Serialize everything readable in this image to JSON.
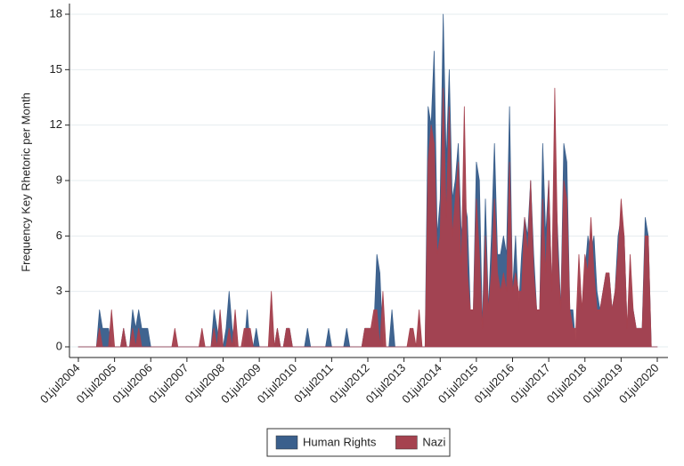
{
  "chart_data": {
    "type": "area",
    "y_label": "Frequency Key Rhetoric per Month",
    "x": [
      "2004-07-01",
      "2004-08-01",
      "2004-09-01",
      "2004-10-01",
      "2004-11-01",
      "2004-12-01",
      "2005-01-01",
      "2005-02-01",
      "2005-03-01",
      "2005-04-01",
      "2005-05-01",
      "2005-06-01",
      "2005-07-01",
      "2005-08-01",
      "2005-09-01",
      "2005-10-01",
      "2005-11-01",
      "2005-12-01",
      "2006-01-01",
      "2006-02-01",
      "2006-03-01",
      "2006-04-01",
      "2006-05-01",
      "2006-06-01",
      "2006-07-01",
      "2006-08-01",
      "2006-09-01",
      "2006-10-01",
      "2006-11-01",
      "2006-12-01",
      "2007-01-01",
      "2007-02-01",
      "2007-03-01",
      "2007-04-01",
      "2007-05-01",
      "2007-06-01",
      "2007-07-01",
      "2007-08-01",
      "2007-09-01",
      "2007-10-01",
      "2007-11-01",
      "2007-12-01",
      "2008-01-01",
      "2008-02-01",
      "2008-03-01",
      "2008-04-01",
      "2008-05-01",
      "2008-06-01",
      "2008-07-01",
      "2008-08-01",
      "2008-09-01",
      "2008-10-01",
      "2008-11-01",
      "2008-12-01",
      "2009-01-01",
      "2009-02-01",
      "2009-03-01",
      "2009-04-01",
      "2009-05-01",
      "2009-06-01",
      "2009-07-01",
      "2009-08-01",
      "2009-09-01",
      "2009-10-01",
      "2009-11-01",
      "2009-12-01",
      "2010-01-01",
      "2010-02-01",
      "2010-03-01",
      "2010-04-01",
      "2010-05-01",
      "2010-06-01",
      "2010-07-01",
      "2010-08-01",
      "2010-09-01",
      "2010-10-01",
      "2010-11-01",
      "2010-12-01",
      "2011-01-01",
      "2011-02-01",
      "2011-03-01",
      "2011-04-01",
      "2011-05-01",
      "2011-06-01",
      "2011-07-01",
      "2011-08-01",
      "2011-09-01",
      "2011-10-01",
      "2011-11-01",
      "2011-12-01",
      "2012-01-01",
      "2012-02-01",
      "2012-03-01",
      "2012-04-01",
      "2012-05-01",
      "2012-06-01",
      "2012-07-01",
      "2012-08-01",
      "2012-09-01",
      "2012-10-01",
      "2012-11-01",
      "2012-12-01",
      "2013-01-01",
      "2013-02-01",
      "2013-03-01",
      "2013-04-01",
      "2013-05-01",
      "2013-06-01",
      "2013-07-01",
      "2013-08-01",
      "2013-09-01",
      "2013-10-01",
      "2013-11-01",
      "2013-12-01",
      "2014-01-01",
      "2014-02-01",
      "2014-03-01",
      "2014-04-01",
      "2014-05-01",
      "2014-06-01",
      "2014-07-01",
      "2014-08-01",
      "2014-09-01",
      "2014-10-01",
      "2014-11-01",
      "2014-12-01",
      "2015-01-01",
      "2015-02-01",
      "2015-03-01",
      "2015-04-01",
      "2015-05-01",
      "2015-06-01",
      "2015-07-01",
      "2015-08-01",
      "2015-09-01",
      "2015-10-01",
      "2015-11-01",
      "2015-12-01",
      "2016-01-01",
      "2016-02-01",
      "2016-03-01",
      "2016-04-01",
      "2016-05-01",
      "2016-06-01",
      "2016-07-01",
      "2016-08-01",
      "2016-09-01",
      "2016-10-01",
      "2016-11-01",
      "2016-12-01",
      "2017-01-01",
      "2017-02-01",
      "2017-03-01",
      "2017-04-01",
      "2017-05-01",
      "2017-06-01",
      "2017-07-01",
      "2017-08-01",
      "2017-09-01",
      "2017-10-01",
      "2017-11-01",
      "2017-12-01",
      "2018-01-01",
      "2018-02-01",
      "2018-03-01",
      "2018-04-01",
      "2018-05-01",
      "2018-06-01",
      "2018-07-01",
      "2018-08-01",
      "2018-09-01",
      "2018-10-01",
      "2018-11-01",
      "2018-12-01",
      "2019-01-01",
      "2019-02-01",
      "2019-03-01",
      "2019-04-01",
      "2019-05-01",
      "2019-06-01",
      "2019-07-01",
      "2019-08-01",
      "2019-09-01",
      "2019-10-01",
      "2019-11-01",
      "2019-12-01",
      "2020-01-01",
      "2020-02-01",
      "2020-03-01",
      "2020-04-01",
      "2020-05-01",
      "2020-06-01",
      "2020-07-01"
    ],
    "series": [
      {
        "name": "Human Rights",
        "color": "#3a5f8c",
        "values": [
          0,
          0,
          0,
          0,
          0,
          0,
          0,
          2,
          1,
          1,
          1,
          0,
          0,
          0,
          0,
          1,
          0,
          0,
          2,
          1,
          2,
          1,
          1,
          1,
          0,
          0,
          0,
          0,
          0,
          0,
          0,
          0,
          0,
          0,
          0,
          0,
          0,
          0,
          0,
          0,
          0,
          0,
          0,
          0,
          0,
          2,
          1,
          0,
          0,
          1,
          3,
          1,
          0,
          0,
          0,
          0,
          2,
          0,
          0,
          1,
          0,
          0,
          0,
          0,
          0,
          0,
          1,
          0,
          0,
          1,
          1,
          0,
          0,
          0,
          0,
          0,
          1,
          0,
          0,
          0,
          0,
          0,
          0,
          1,
          0,
          0,
          0,
          0,
          0,
          1,
          0,
          0,
          0,
          0,
          0,
          1,
          1,
          1,
          1,
          5,
          4,
          0,
          0,
          0,
          2,
          0,
          0,
          0,
          0,
          0,
          0,
          0,
          0,
          0,
          0,
          0,
          13,
          12,
          16,
          6,
          8,
          18,
          10,
          15,
          8,
          9,
          11,
          6,
          8,
          7,
          2,
          2,
          10,
          9,
          1,
          8,
          2,
          6,
          11,
          5,
          5,
          6,
          5,
          13,
          3,
          6,
          2,
          5,
          7,
          6,
          9,
          5,
          2,
          2,
          11,
          6,
          9,
          3,
          10,
          6,
          2,
          11,
          10,
          2,
          2,
          0,
          3,
          2,
          4,
          6,
          5,
          6,
          3,
          2,
          3,
          4,
          4,
          2,
          3,
          6,
          7,
          6,
          1,
          3,
          2,
          1,
          1,
          1,
          7,
          6,
          0,
          0,
          0
        ]
      },
      {
        "name": "Nazi",
        "color": "#a5424f",
        "values": [
          0,
          0,
          0,
          0,
          0,
          0,
          0,
          1,
          0,
          0,
          0,
          2,
          0,
          0,
          0,
          1,
          0,
          0,
          1,
          0,
          1,
          0,
          0,
          0,
          0,
          0,
          0,
          0,
          0,
          0,
          0,
          0,
          1,
          0,
          0,
          0,
          0,
          0,
          0,
          0,
          0,
          1,
          0,
          0,
          0,
          1,
          0,
          2,
          0,
          0,
          1,
          0,
          2,
          0,
          0,
          1,
          1,
          1,
          0,
          0,
          0,
          0,
          0,
          0,
          3,
          0,
          1,
          0,
          0,
          1,
          1,
          0,
          0,
          0,
          0,
          0,
          0,
          0,
          0,
          0,
          0,
          0,
          0,
          0,
          0,
          0,
          0,
          0,
          0,
          0,
          0,
          0,
          0,
          0,
          0,
          1,
          1,
          1,
          2,
          2,
          0,
          3,
          0,
          0,
          0,
          0,
          0,
          0,
          0,
          0,
          1,
          1,
          0,
          2,
          0,
          0,
          10,
          12,
          11,
          5,
          6,
          14,
          7,
          13,
          6,
          8,
          10,
          4,
          13,
          4,
          2,
          2,
          8,
          5,
          1,
          6,
          2,
          4,
          8,
          4,
          3,
          4,
          3,
          10,
          3,
          4,
          3,
          3,
          7,
          5,
          9,
          4,
          2,
          2,
          8,
          4,
          9,
          3,
          14,
          5,
          2,
          9,
          8,
          2,
          1,
          1,
          5,
          2,
          5,
          4,
          7,
          4,
          2,
          2,
          3,
          4,
          4,
          2,
          3,
          5,
          8,
          6,
          1,
          5,
          2,
          1,
          1,
          1,
          6,
          6,
          0,
          0,
          0
        ]
      }
    ],
    "xlim": [
      "2004-07-01",
      "2020-07-01"
    ],
    "xticks": [
      {
        "value": "2004-07-01",
        "label": "01jul2004"
      },
      {
        "value": "2005-07-01",
        "label": "01jul2005"
      },
      {
        "value": "2006-07-01",
        "label": "01jul2006"
      },
      {
        "value": "2007-07-01",
        "label": "01jul2007"
      },
      {
        "value": "2008-07-01",
        "label": "01jul2008"
      },
      {
        "value": "2009-07-01",
        "label": "01jul2009"
      },
      {
        "value": "2010-07-01",
        "label": "01jul2010"
      },
      {
        "value": "2011-07-01",
        "label": "01jul2011"
      },
      {
        "value": "2012-07-01",
        "label": "01jul2012"
      },
      {
        "value": "2013-07-01",
        "label": "01jul2013"
      },
      {
        "value": "2014-07-01",
        "label": "01jul2014"
      },
      {
        "value": "2015-07-01",
        "label": "01jul2015"
      },
      {
        "value": "2016-07-01",
        "label": "01jul2016"
      },
      {
        "value": "2017-07-01",
        "label": "01jul2017"
      },
      {
        "value": "2018-07-01",
        "label": "01jul2018"
      },
      {
        "value": "2019-07-01",
        "label": "01jul2019"
      },
      {
        "value": "2020-07-01",
        "label": "01jul2020"
      }
    ],
    "ylim": [
      0,
      18
    ],
    "yticks": [
      0,
      3,
      6,
      9,
      12,
      15,
      18
    ],
    "grid": true,
    "legend": "bottom"
  }
}
